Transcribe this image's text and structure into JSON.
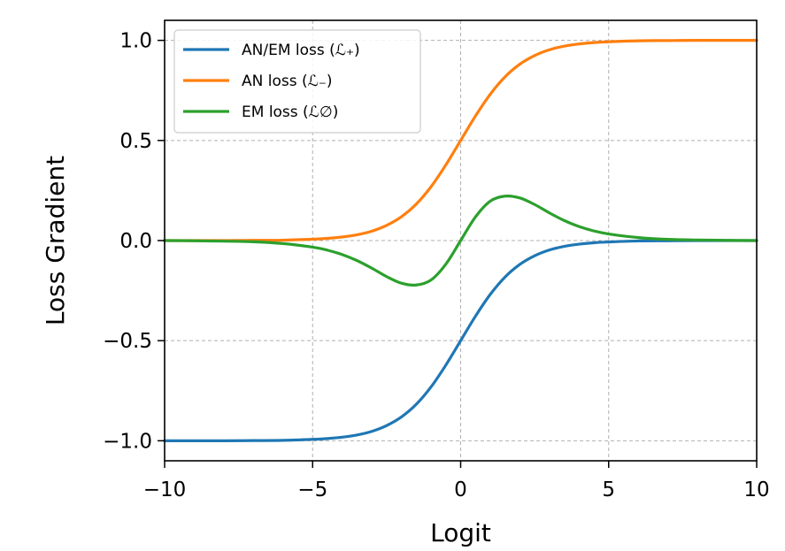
{
  "chart_data": {
    "type": "line",
    "title": "",
    "xlabel": "Logit",
    "ylabel": "Loss Gradient",
    "xlim": [
      -10,
      10
    ],
    "ylim": [
      -1.1,
      1.1
    ],
    "xticks": [
      -10,
      -5,
      0,
      5,
      10
    ],
    "xtick_labels": [
      "−10",
      "−5",
      "0",
      "5",
      "10"
    ],
    "yticks": [
      -1.0,
      -0.5,
      0.0,
      0.5,
      1.0
    ],
    "ytick_labels": [
      "−1.0",
      "−0.5",
      "0.0",
      "0.5",
      "1.0"
    ],
    "grid": true,
    "legend_position": "top-left",
    "x": [
      -10,
      -9,
      -8,
      -7,
      -6,
      -5,
      -4.5,
      -4,
      -3.5,
      -3,
      -2.5,
      -2,
      -1.5,
      -1,
      -0.5,
      0,
      0.5,
      1,
      1.5,
      2,
      2.5,
      3,
      3.5,
      4,
      4.5,
      5,
      6,
      7,
      8,
      9,
      10
    ],
    "series": [
      {
        "name": "AN/EM loss (ℒ₊)",
        "color": "#1f77b4",
        "values": [
          -1.0,
          -1.0,
          -1.0,
          -0.999,
          -0.998,
          -0.993,
          -0.989,
          -0.982,
          -0.971,
          -0.953,
          -0.924,
          -0.881,
          -0.818,
          -0.731,
          -0.622,
          -0.5,
          -0.378,
          -0.269,
          -0.182,
          -0.119,
          -0.076,
          -0.047,
          -0.029,
          -0.018,
          -0.011,
          -0.007,
          -0.002,
          -0.001,
          0.0,
          0.0,
          0.0
        ]
      },
      {
        "name": "AN loss (ℒ₋)",
        "color": "#ff7f0e",
        "values": [
          0.0,
          0.0,
          0.0,
          0.001,
          0.002,
          0.007,
          0.011,
          0.018,
          0.029,
          0.047,
          0.076,
          0.119,
          0.182,
          0.269,
          0.378,
          0.5,
          0.622,
          0.731,
          0.818,
          0.881,
          0.924,
          0.953,
          0.971,
          0.982,
          0.989,
          0.993,
          0.998,
          0.999,
          1.0,
          1.0,
          1.0
        ]
      },
      {
        "name": "EM loss (ℒ∅)",
        "color": "#2ca02c",
        "values": [
          0.0,
          -0.001,
          -0.003,
          -0.006,
          -0.015,
          -0.033,
          -0.048,
          -0.07,
          -0.1,
          -0.138,
          -0.18,
          -0.213,
          -0.222,
          -0.197,
          -0.118,
          0.0,
          0.118,
          0.197,
          0.222,
          0.213,
          0.18,
          0.138,
          0.1,
          0.07,
          0.048,
          0.033,
          0.015,
          0.006,
          0.003,
          0.001,
          0.0
        ]
      }
    ]
  }
}
